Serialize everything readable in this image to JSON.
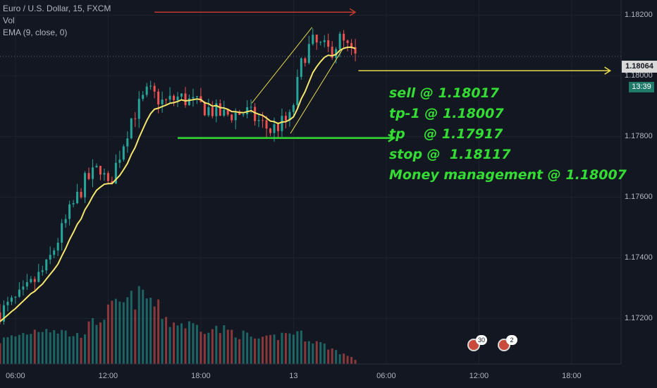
{
  "legend": {
    "symbol": "Euro / U.S. Dollar, 15, FXCM",
    "vol": "Vol",
    "ema": "EMA (9, close, 0)"
  },
  "annotations": [
    "sell @ 1.18017",
    "tp-1 @ 1.18007",
    "tp    @ 1.17917",
    "stop @  1.18117",
    "Money management @ 1.18007"
  ],
  "price_tag": "1.18064",
  "countdown": "13:39",
  "events": [
    {
      "badge": "30"
    },
    {
      "badge": "2"
    }
  ],
  "colors": {
    "up": "#26a69a",
    "down": "#ef5350",
    "ema": "#f5e66b",
    "annot": "#33dd33",
    "arrow_red": "#c0392b",
    "arrow_yellow": "#e6d84a"
  },
  "chart_data": {
    "type": "candlestick",
    "ylim": [
      1.1705,
      1.1825
    ],
    "yticks": [
      "1.18200",
      "1.18000",
      "1.17800",
      "1.17600",
      "1.17400",
      "1.17200"
    ],
    "ytick_values": [
      1.182,
      1.18,
      1.178,
      1.176,
      1.174,
      1.172
    ],
    "xticks": [
      {
        "label": "06:00",
        "hour": 6
      },
      {
        "label": "12:00",
        "hour": 12
      },
      {
        "label": "18:00",
        "hour": 18
      },
      {
        "label": "13",
        "hour": 24
      },
      {
        "label": "06:00",
        "hour": 30
      },
      {
        "label": "12:00",
        "hour": 36
      },
      {
        "label": "18:00",
        "hour": 42
      }
    ],
    "xlim_hours": [
      5,
      45.2
    ],
    "waypoints": [
      [
        5.0,
        1.1722
      ],
      [
        6.5,
        1.1728
      ],
      [
        8.0,
        1.1737
      ],
      [
        9.5,
        1.1755
      ],
      [
        10.5,
        1.1765
      ],
      [
        11.5,
        1.177
      ],
      [
        12.0,
        1.1763
      ],
      [
        12.8,
        1.1775
      ],
      [
        13.5,
        1.1786
      ],
      [
        14.6,
        1.1795
      ],
      [
        15.6,
        1.1791
      ],
      [
        16.6,
        1.1793
      ],
      [
        18.0,
        1.179
      ],
      [
        19.5,
        1.1787
      ],
      [
        21.0,
        1.1788
      ],
      [
        22.5,
        1.1782
      ],
      [
        23.8,
        1.1786
      ],
      [
        24.6,
        1.1806
      ],
      [
        25.2,
        1.1811
      ],
      [
        26.4,
        1.1808
      ],
      [
        27.0,
        1.1812
      ],
      [
        28.0,
        1.1806
      ]
    ],
    "volume_peaks": [
      [
        5.0,
        0.25
      ],
      [
        8.0,
        0.4
      ],
      [
        10.0,
        0.3
      ],
      [
        12.3,
        0.6
      ],
      [
        14.4,
        0.75
      ],
      [
        16.0,
        0.45
      ],
      [
        20.0,
        0.35
      ],
      [
        22.0,
        0.25
      ],
      [
        24.0,
        0.35
      ],
      [
        26.0,
        0.2
      ],
      [
        28.0,
        0.05
      ]
    ]
  },
  "drawings": {
    "red_arrow": {
      "from": [
        15.0,
        1.1821
      ],
      "to": [
        28.0,
        1.1821
      ]
    },
    "yellow_arrow": {
      "from": [
        28.2,
        1.18017
      ],
      "to": [
        44.5,
        1.18017
      ]
    },
    "green_arrow": {
      "from": [
        16.5,
        1.17795
      ],
      "to": [
        30.5,
        1.17795
      ]
    },
    "channel": [
      {
        "from": [
          21.3,
          1.1791
        ],
        "to": [
          25.2,
          1.1816
        ]
      },
      {
        "from": [
          23.8,
          1.1781
        ],
        "to": [
          27.2,
          1.1809
        ]
      }
    ]
  }
}
